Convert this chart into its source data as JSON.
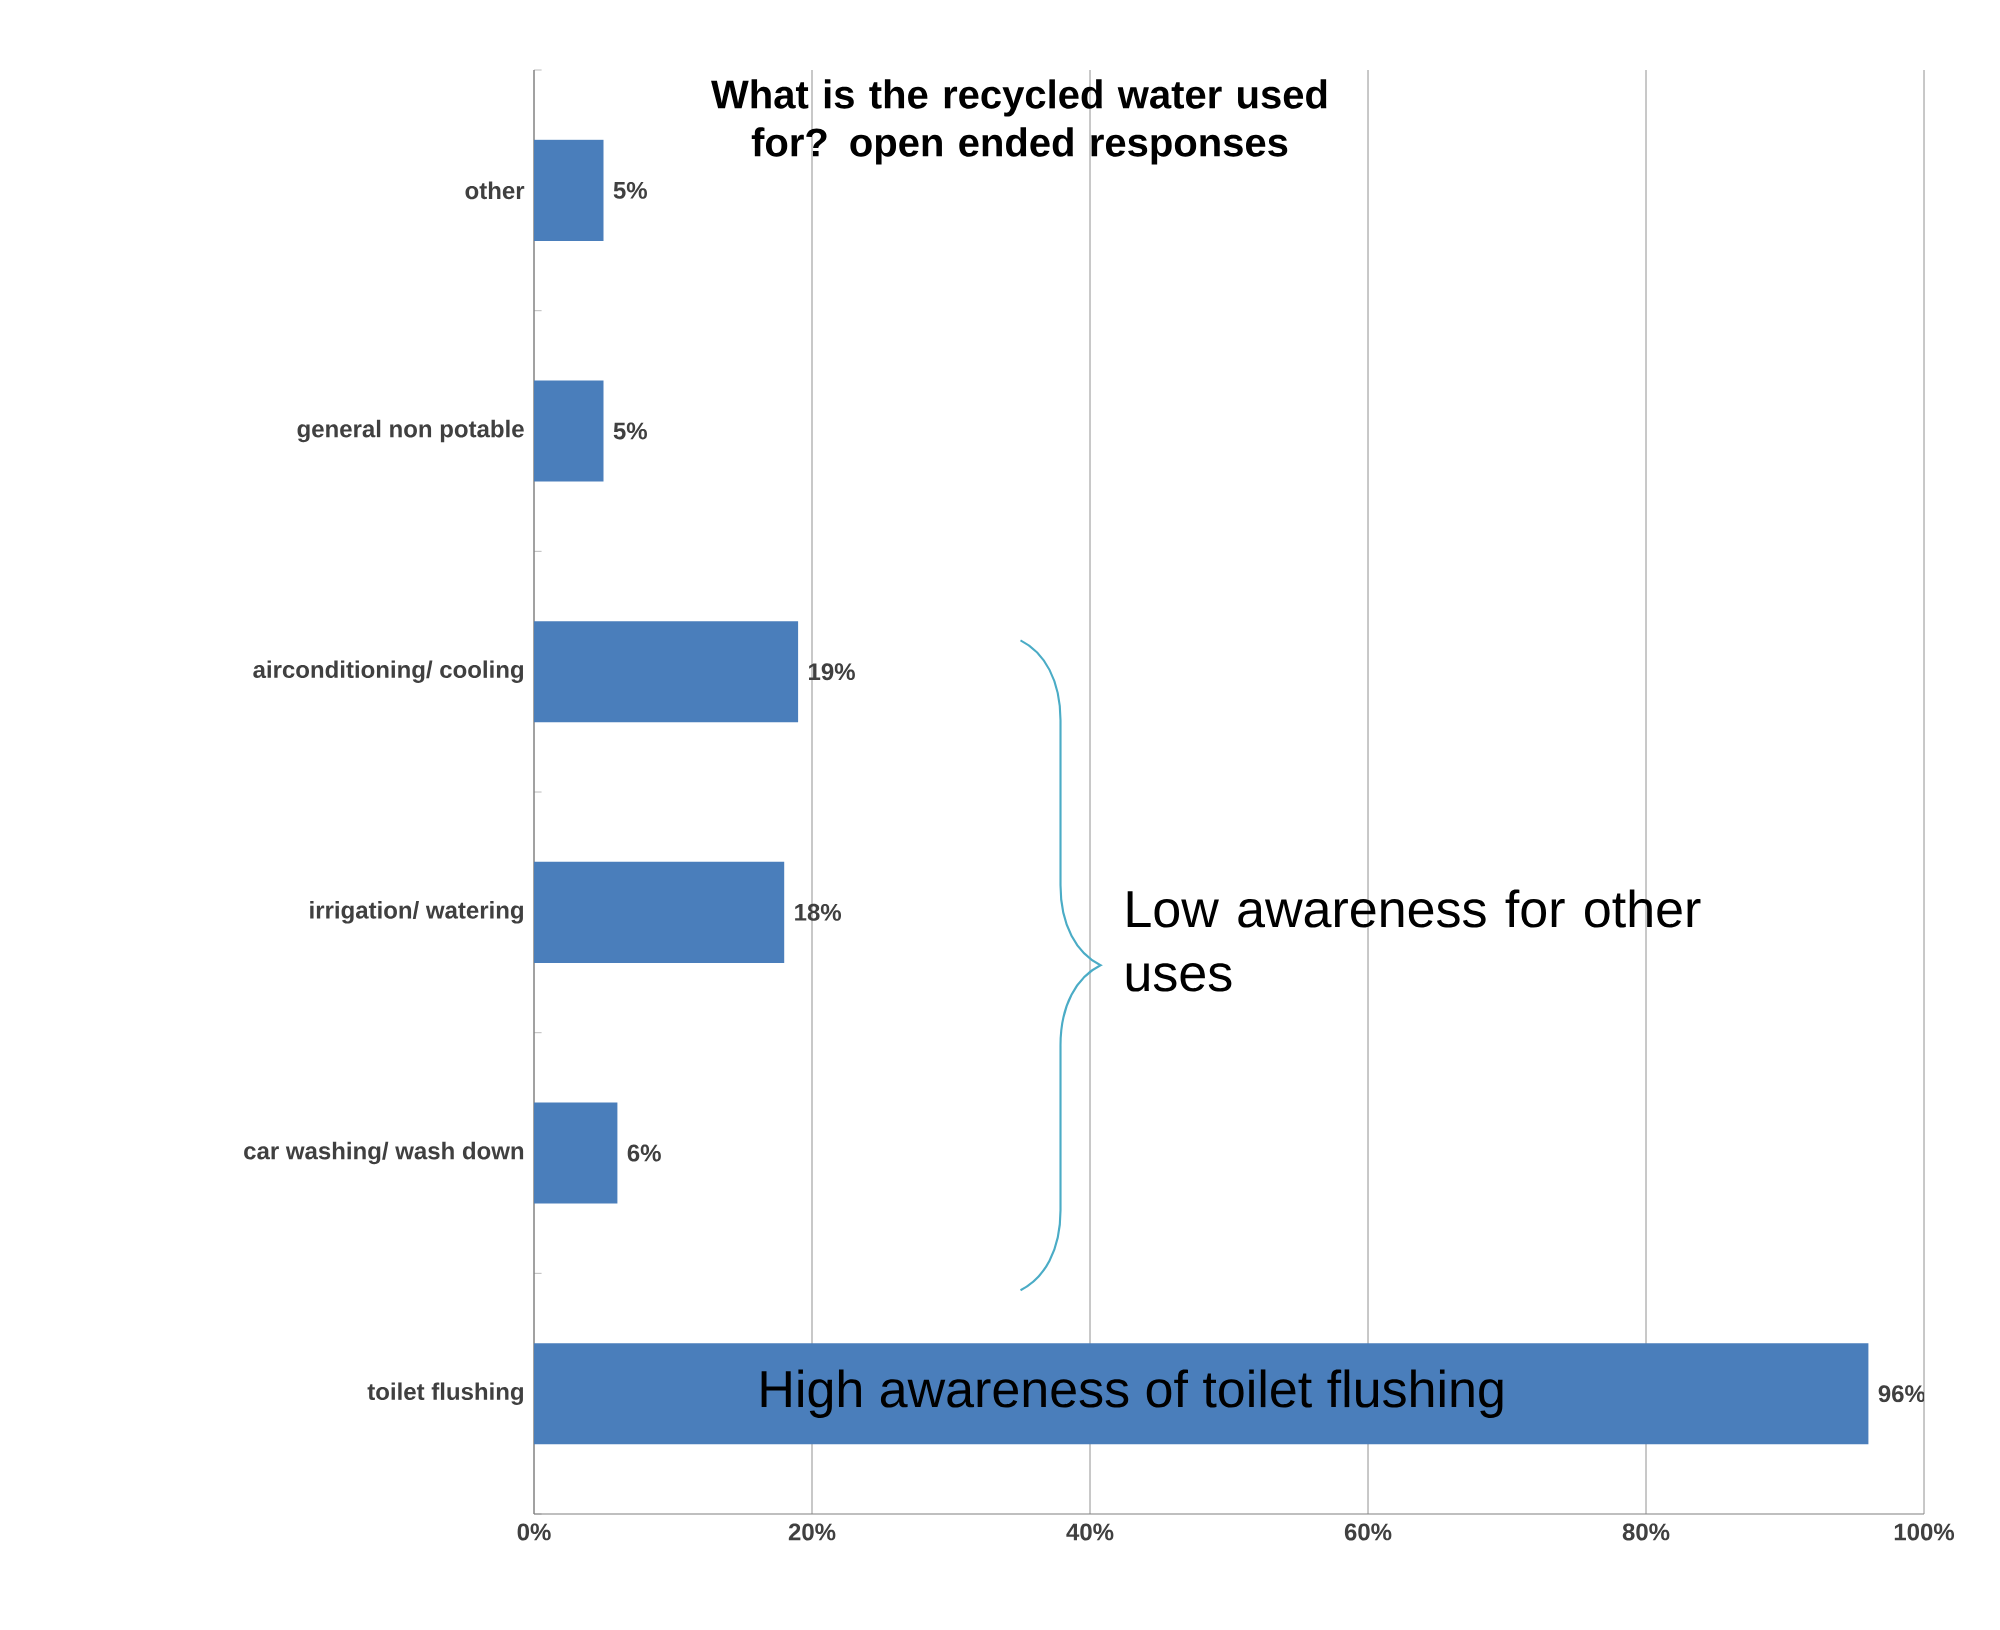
{
  "chart_data": {
    "type": "bar",
    "orientation": "horizontal",
    "title": "What is the recycled water used for? open ended responses",
    "categories": [
      "other",
      "general non potable",
      "airconditioning/ cooling",
      "irrigation/ watering",
      "car washing/ wash down",
      "toilet flushing"
    ],
    "values": [
      5,
      5,
      19,
      18,
      6,
      96
    ],
    "value_labels": [
      "5%",
      "5%",
      "19%",
      "18%",
      "6%",
      "96%"
    ],
    "color": "#4a7ebb",
    "xlim": [
      0,
      100
    ],
    "xticks": [
      {
        "value": 0,
        "label": "0%"
      },
      {
        "value": 20,
        "label": "20%"
      },
      {
        "value": 40,
        "label": "40%"
      },
      {
        "value": 60,
        "label": "60%"
      },
      {
        "value": 80,
        "label": "80%"
      },
      {
        "value": 100,
        "label": "100%"
      }
    ],
    "grid": "x",
    "annotations": [
      "Low awareness for other uses",
      "High awareness of toilet flushing"
    ]
  }
}
